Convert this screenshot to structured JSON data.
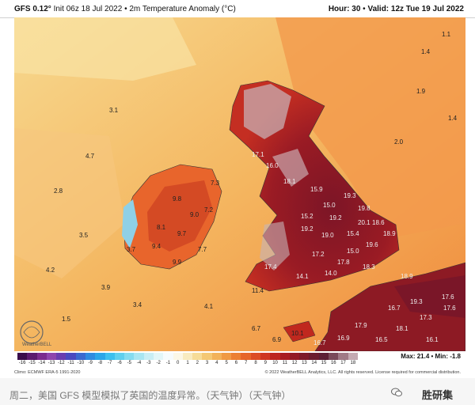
{
  "header": {
    "model": "GFS 0.12°",
    "init": "Init 06z 18 Jul 2022",
    "field": "2m Temperature Anomaly (°C)",
    "hour": "Hour: 30",
    "valid": "Valid: 12z Tue 19 Jul 2022"
  },
  "map": {
    "logo_text": "WeatherBELL",
    "labels": [
      {
        "v": "1.1"
      },
      {
        "v": "1.4"
      },
      {
        "v": "1.9"
      },
      {
        "v": "1.4"
      },
      {
        "v": "2.0"
      },
      {
        "v": "17.1"
      },
      {
        "v": "16.0"
      },
      {
        "v": "18.1"
      },
      {
        "v": "15.9"
      },
      {
        "v": "19.3"
      },
      {
        "v": "15.0"
      },
      {
        "v": "19.8"
      },
      {
        "v": "15.2"
      },
      {
        "v": "19.2"
      },
      {
        "v": "20.1"
      },
      {
        "v": "18.6"
      },
      {
        "v": "19.2"
      },
      {
        "v": "19.0"
      },
      {
        "v": "15.4"
      },
      {
        "v": "18.9"
      },
      {
        "v": "19.6"
      },
      {
        "v": "15.0"
      },
      {
        "v": "17.2"
      },
      {
        "v": "17.8"
      },
      {
        "v": "18.3"
      },
      {
        "v": "17.4"
      },
      {
        "v": "14.1"
      },
      {
        "v": "14.0"
      },
      {
        "v": "18.9"
      },
      {
        "v": "17.6"
      },
      {
        "v": "19.3"
      },
      {
        "v": "17.6"
      },
      {
        "v": "16.7"
      },
      {
        "v": "17.3"
      },
      {
        "v": "17.9"
      },
      {
        "v": "18.1"
      },
      {
        "v": "16.1"
      },
      {
        "v": "16.5"
      },
      {
        "v": "16.9"
      },
      {
        "v": "16.7"
      },
      {
        "v": "7.2"
      },
      {
        "v": "9.8"
      },
      {
        "v": "9.0"
      },
      {
        "v": "8.1"
      },
      {
        "v": "9.7"
      },
      {
        "v": "9.4"
      },
      {
        "v": "7.7"
      },
      {
        "v": "3.7"
      },
      {
        "v": "9.9"
      },
      {
        "v": "7.3"
      },
      {
        "v": "4.7"
      },
      {
        "v": "2.8"
      },
      {
        "v": "3.5"
      },
      {
        "v": "4.2"
      },
      {
        "v": "3.9"
      },
      {
        "v": "3.4"
      },
      {
        "v": "1.5"
      },
      {
        "v": "4.1"
      },
      {
        "v": "3.1"
      },
      {
        "v": "6.7"
      },
      {
        "v": "10.1"
      },
      {
        "v": "11.4"
      },
      {
        "v": "6.9"
      }
    ]
  },
  "colorbar": {
    "ticks": [
      "-16",
      "-15",
      "-14",
      "-13",
      "-12",
      "-11",
      "-10",
      "-9",
      "-8",
      "-7",
      "-6",
      "-5",
      "-4",
      "-3",
      "-2",
      "-1",
      "0",
      "1",
      "2",
      "3",
      "4",
      "5",
      "6",
      "7",
      "8",
      "9",
      "10",
      "11",
      "12",
      "13",
      "14",
      "15",
      "16",
      "17",
      "18"
    ],
    "colors": [
      "#3a0d4a",
      "#5b1a6e",
      "#7a2b8e",
      "#8e44ad",
      "#6a3db0",
      "#4a4ac0",
      "#3a6ad0",
      "#2e8be0",
      "#2aa6e8",
      "#3cc0ee",
      "#5fd0ee",
      "#84dcf0",
      "#a8e6f2",
      "#c8eef5",
      "#e2f6f8",
      "#f6fbfc",
      "#fbf7e6",
      "#f8ebc0",
      "#f6dc98",
      "#f4c874",
      "#f2b25a",
      "#f09a44",
      "#ec8032",
      "#e6652a",
      "#dc4c26",
      "#cf3622",
      "#bd2520",
      "#a81c22",
      "#931a26",
      "#7e1a2a",
      "#6c1c2e",
      "#5c1e34",
      "#7a4a5a",
      "#a07a86",
      "#c4aab2"
    ],
    "climo": "Climo: ECMWF ERA-5 1991-2020",
    "copyright": "© 2022 WeatherBELL Analytics, LLC. All rights reserved. License required for commercial distribution.",
    "maxmin": "Max: 21.4 • Min: -1.8"
  },
  "caption": {
    "text": "周二，美国 GFS 模型模拟了英国的温度异常。（天气钟）（天气钟）",
    "watermark": "胜研集"
  }
}
